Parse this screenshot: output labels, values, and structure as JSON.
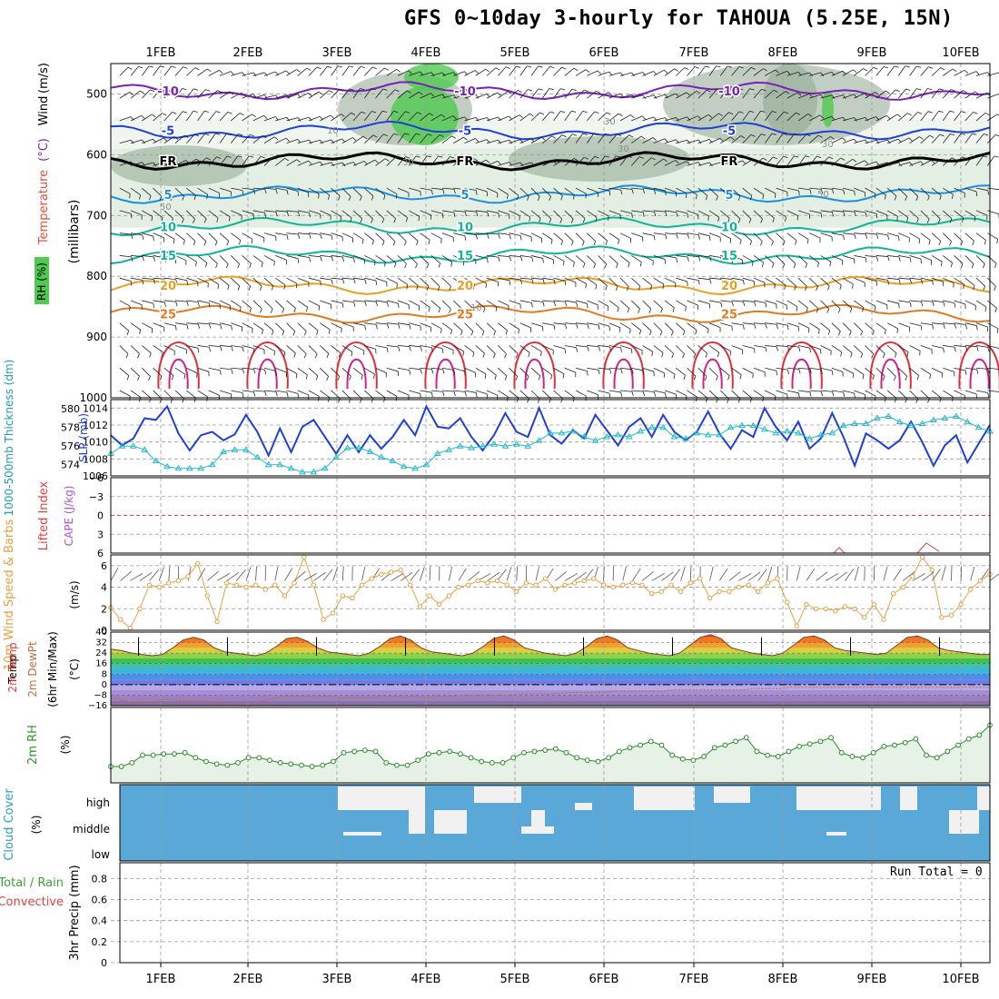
{
  "title": "GFS 0~10day 3-hourly for TAHOUA (5.25E, 15N)",
  "run_total": "Run Total = 0",
  "colors": {
    "rh_green": "#4fc94f",
    "rh_dark": "#8fa58f",
    "rh_light": "#e3efe3",
    "temp_purple": "#7a1fb8",
    "temp_blue": "#1f3fd8",
    "temp_freeze": "#000000",
    "temp_cyan": "#1a8fe0",
    "temp_teal": "#13b39a",
    "temp_orange": "#e8a020",
    "temp_dark_orange": "#e07a20",
    "temp_red": "#e0303a",
    "temp_magenta": "#d0208a",
    "slp": "#1f3fd8",
    "thickness": "#22b8c8",
    "wind10": "#e8a040",
    "rh2m": "#2a8a2a",
    "rh2m_fill": "#e6f2e6",
    "cloud": "#5aa8d8",
    "cloud_gap": "#f1f1f1"
  },
  "chart_data": [
    {
      "panel": "vertical_cross_section",
      "type": "heatmap",
      "x_ticks": [
        "1FEB",
        "2FEB",
        "3FEB",
        "4FEB",
        "5FEB",
        "6FEB",
        "7FEB",
        "8FEB",
        "9FEB",
        "10FEB"
      ],
      "ylabel_parts": [
        "RH (%)",
        "Temperature",
        "(°C)",
        "Wind",
        "(m/s)",
        "(millibars)"
      ],
      "y_ticks": [
        500,
        600,
        700,
        800,
        900,
        1000
      ],
      "ylim": [
        450,
        1000
      ],
      "isotherms": [
        {
          "label": "-10",
          "level": 495
        },
        {
          "label": "-5",
          "level": 560
        },
        {
          "label": "FR",
          "level": 610
        },
        {
          "label": "5",
          "level": 665
        },
        {
          "label": "10",
          "level": 718
        },
        {
          "label": "15",
          "level": 765
        },
        {
          "label": "20",
          "level": 815
        },
        {
          "label": "25",
          "level": 862
        }
      ],
      "rh_labels": [
        "30",
        "30",
        "10",
        "30",
        "50",
        "10",
        "30",
        "50"
      ]
    },
    {
      "panel": "slp_thickness",
      "type": "line",
      "ylabel": "SLP (mb)",
      "ylabel2": "1000-500mb Thickness (dm)",
      "y_ticks": [
        1006,
        1008,
        1010,
        1012,
        1014
      ],
      "y2_ticks": [
        574,
        576,
        578,
        580
      ],
      "ylim": [
        1006,
        1015
      ],
      "series": [
        {
          "name": "SLP (mb)",
          "values": [
            1010.8,
            1009.6,
            1010.4,
            1012.8,
            1012.6,
            1014.2,
            1011,
            1009,
            1010.8,
            1011.2,
            1010.2,
            1010.9,
            1013.2,
            1011.2,
            1008.4,
            1011.6,
            1008.8,
            1011.8,
            1012.6,
            1010.6,
            1008.6,
            1010.8,
            1008.8,
            1010.8,
            1009.2,
            1010.6,
            1012.6,
            1010.8,
            1014.2,
            1011.8,
            1011.6,
            1012.8,
            1010.6,
            1009,
            1010.8,
            1013.4,
            1011.2,
            1010.6,
            1014,
            1010.8,
            1009.8,
            1011.4,
            1010.4,
            1013.2,
            1011.4,
            1009.6,
            1011.8,
            1012.8,
            1010.6,
            1013.2,
            1011.2,
            1010.2,
            1011.2,
            1013.6,
            1011,
            1009.2,
            1011.4,
            1010.6,
            1014,
            1011.8,
            1010.2,
            1012.4,
            1009.2,
            1010.4,
            1013.4,
            1010.6,
            1007.2,
            1011,
            1010.2,
            1009.2,
            1010.2,
            1012.4,
            1010,
            1007.2,
            1009.6,
            1010.8,
            1007.6,
            1009.8,
            1012
          ]
        },
        {
          "name": "1000-500mb Thickness (dm)",
          "values": [
            575.2,
            576,
            576,
            575.6,
            574.4,
            573.8,
            573.6,
            573.6,
            573.6,
            574,
            575.4,
            575.6,
            575.6,
            574.8,
            574,
            574,
            573.6,
            573.2,
            573.2,
            573.6,
            574.8,
            575.8,
            575.8,
            575.4,
            574.8,
            574.4,
            573.8,
            573.6,
            574,
            575.2,
            575.6,
            576,
            575.8,
            576,
            576.2,
            576,
            576.2,
            576,
            576.6,
            577.4,
            577.4,
            577.6,
            577,
            576.6,
            577,
            577.2,
            577,
            577.6,
            578,
            578,
            577,
            576.8,
            577.4,
            577.2,
            577.2,
            578,
            578.2,
            578.2,
            577.8,
            577.4,
            577.6,
            577.4,
            576.8,
            577.2,
            577.4,
            578.2,
            578.4,
            578.4,
            579,
            579.2,
            578.6,
            578.2,
            578.4,
            578.8,
            579,
            579.2,
            578.6,
            578,
            577.6
          ]
        }
      ]
    },
    {
      "panel": "lifted_index_cape",
      "type": "line",
      "ylabel": "Lifted Index",
      "ylabel2": "CAPE (J/kg)",
      "y_ticks": [
        -6,
        -3,
        0,
        3,
        6
      ],
      "ylim": [
        -6,
        6
      ]
    },
    {
      "panel": "wind10m",
      "type": "line",
      "ylabel": "10m Wind Speed & Barbs",
      "unit": "(m/s)",
      "y_ticks": [
        0,
        2,
        4,
        6
      ],
      "ylim": [
        0,
        7
      ],
      "series": [
        {
          "name": "10m Wind Speed",
          "values": [
            2.1,
            1,
            0.2,
            2,
            4.2,
            4,
            4.4,
            4.6,
            5,
            6.2,
            3.2,
            0.8,
            4.4,
            4.2,
            4,
            4.2,
            3.8,
            4.2,
            3.2,
            4.4,
            6.8,
            4.2,
            1,
            1.6,
            3.2,
            3,
            4.2,
            4.8,
            5.2,
            5.4,
            5.6,
            4.2,
            2.2,
            3.2,
            2.4,
            3.2,
            4,
            4.2,
            4.6,
            4.4,
            4.6,
            4.2,
            3.6,
            4.4,
            4.2,
            4.8,
            3.8,
            4.2,
            4.4,
            4.6,
            4.8,
            4.2,
            4,
            4.2,
            4.4,
            4.2,
            3.4,
            3.6,
            4.2,
            3.6,
            4.4,
            4.8,
            3,
            3.6,
            3.6,
            4,
            4.2,
            3.6,
            4.4,
            4.8,
            2.6,
            0.4,
            2.4,
            2,
            2,
            1.8,
            2.2,
            2,
            1.2,
            2.4,
            1,
            3.4,
            4,
            5,
            6.8,
            5.6,
            1.2,
            1.4,
            2.4,
            3.8,
            4.6,
            5.2
          ]
        }
      ]
    },
    {
      "panel": "temp2m",
      "type": "area",
      "ylabel": "2m Temp 2m DewPt (6hr Min/Max)",
      "unit": "(°C)",
      "y_ticks": [
        -16,
        -8,
        0,
        8,
        16,
        24,
        32,
        40
      ],
      "ylim": [
        -16,
        40
      ],
      "series": [
        {
          "name": "2m Temp",
          "values": [
            27,
            26,
            24,
            23,
            22,
            23,
            28,
            34,
            36,
            34,
            28,
            25,
            24,
            23,
            22,
            24,
            29,
            35,
            36,
            33,
            28,
            25,
            24,
            23,
            22,
            24,
            29,
            35,
            37,
            34,
            28,
            25,
            24,
            23,
            22,
            24,
            29,
            35,
            37,
            34,
            28,
            26,
            24,
            23,
            22,
            24,
            29,
            35,
            37,
            34,
            28,
            26,
            24,
            23,
            22,
            24,
            30,
            36,
            38,
            35,
            28,
            26,
            24,
            23,
            22,
            24,
            30,
            36,
            37,
            34,
            28,
            26,
            25,
            24,
            23,
            24,
            30,
            36,
            37,
            34,
            28,
            26,
            25,
            24,
            23,
            23
          ]
        },
        {
          "name": "2m DewPt",
          "values": [
            -10,
            -12,
            -13,
            -13,
            -12,
            -11,
            -12,
            -12,
            -12,
            -13,
            -14,
            -16,
            -16,
            -12,
            -10,
            -9,
            -9,
            -9,
            -9,
            -9,
            -10,
            -10,
            -10,
            -9,
            -9,
            -9,
            -9,
            -10,
            -9,
            -9,
            -8,
            -8,
            -8,
            -8,
            -8,
            -7,
            -7,
            -7,
            -7,
            -6,
            -6,
            -6,
            -6,
            -5,
            -5,
            -5,
            -5,
            -5,
            -4,
            -4,
            -4,
            -4,
            -4,
            -4,
            -4,
            -3,
            -3,
            -3,
            -2,
            -2,
            -2,
            -2,
            -2,
            -2,
            -2,
            -2,
            -2,
            -2,
            -2,
            -2,
            -2,
            -2,
            -2,
            -2,
            -2,
            -2
          ]
        }
      ]
    },
    {
      "panel": "rh2m",
      "type": "area",
      "ylabel": "2m RH",
      "unit": "(%)",
      "series": [
        {
          "name": "2m RH",
          "values": [
            13,
            13,
            16,
            22,
            22,
            23,
            23,
            24,
            20,
            17,
            15,
            14,
            16,
            20,
            20,
            18,
            16,
            15,
            14,
            13,
            14,
            17,
            24,
            25,
            26,
            25,
            16,
            14,
            14,
            18,
            23,
            24,
            25,
            23,
            20,
            17,
            16,
            16,
            20,
            24,
            25,
            26,
            27,
            24,
            20,
            18,
            17,
            20,
            25,
            28,
            30,
            33,
            30,
            22,
            19,
            18,
            21,
            28,
            30,
            33,
            36,
            25,
            22,
            21,
            25,
            29,
            31,
            33,
            36,
            24,
            21,
            20,
            24,
            29,
            30,
            32,
            35,
            22,
            20,
            25,
            30,
            35,
            38,
            46
          ]
        }
      ]
    },
    {
      "panel": "cloud_cover",
      "type": "heatmap",
      "ylabel": "Cloud Cover",
      "unit": "(%)",
      "levels": [
        "high",
        "middle",
        "low"
      ]
    },
    {
      "panel": "precip",
      "type": "bar",
      "ylabel": "3hr Precip (mm)",
      "ylabel_parts": [
        "Total / Rain",
        "Convective"
      ],
      "y_ticks": [
        0,
        0.2,
        0.4,
        0.6,
        0.8
      ],
      "ylim": [
        0,
        0.95
      ],
      "values": []
    }
  ]
}
